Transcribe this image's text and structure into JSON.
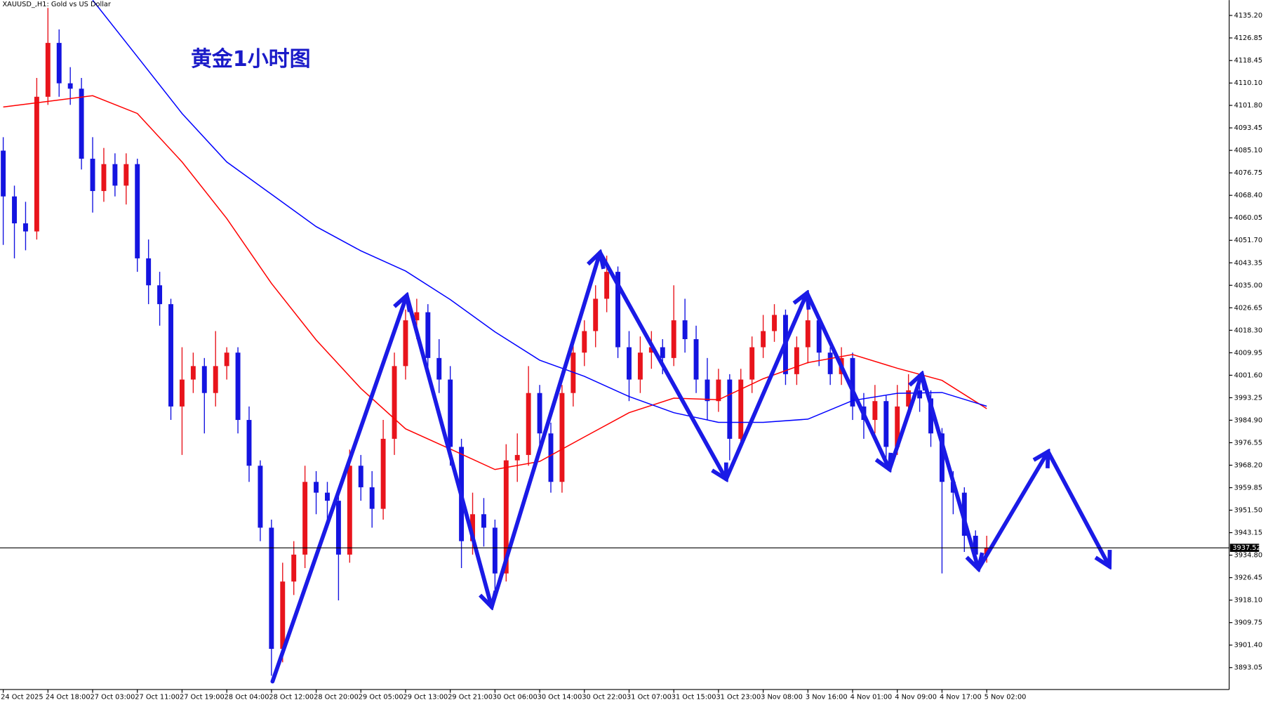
{
  "chart_data": {
    "type": "candlestick",
    "title": "XAUUSD_,H1:  Gold vs US Dollar",
    "annotation": "黄金1小时图",
    "categories": [
      "24 Oct 2025",
      null,
      null,
      null,
      "24 Oct 18:00",
      null,
      null,
      null,
      "27 Oct 03:00",
      null,
      null,
      null,
      "27 Oct 11:00",
      null,
      null,
      null,
      "27 Oct 19:00",
      null,
      null,
      null,
      "28 Oct 04:00",
      null,
      null,
      null,
      "28 Oct 12:00",
      null,
      null,
      null,
      "28 Oct 20:00",
      null,
      null,
      null,
      "29 Oct 05:00",
      null,
      null,
      null,
      "29 Oct 13:00",
      null,
      null,
      null,
      "29 Oct 21:00",
      null,
      null,
      null,
      "30 Oct 06:00",
      null,
      null,
      null,
      "30 Oct 14:00",
      null,
      null,
      null,
      "30 Oct 22:00",
      null,
      null,
      null,
      "31 Oct 07:00",
      null,
      null,
      null,
      "31 Oct 15:00",
      null,
      null,
      null,
      "31 Oct 23:00",
      null,
      null,
      null,
      "3 Nov 08:00",
      null,
      null,
      null,
      "3 Nov 16:00",
      null,
      null,
      null,
      "4 Nov 01:00",
      null,
      null,
      null,
      "4 Nov 09:00",
      null,
      null,
      null,
      "4 Nov 17:00",
      null,
      null,
      null,
      "5 Nov 02:00"
    ],
    "open": [
      4085,
      4068,
      4058,
      4055,
      4105,
      4125,
      4110,
      4108,
      4082,
      4070,
      4080,
      4072,
      4080,
      4045,
      4035,
      4028,
      3990,
      4000,
      4005,
      3995,
      4005,
      4010,
      3985,
      3968,
      3945,
      3900,
      3925,
      3935,
      3962,
      3958,
      3955,
      3935,
      3968,
      3960,
      3952,
      3978,
      4005,
      4022,
      4025,
      4008,
      4000,
      3975,
      3940,
      3950,
      3945,
      3928,
      3970,
      3972,
      3995,
      3980,
      3962,
      3995,
      4010,
      4018,
      4030,
      4040,
      4012,
      4000,
      4010,
      4012,
      4008,
      4022,
      4015,
      4000,
      3992,
      4000,
      3978,
      4000,
      4012,
      4018,
      4024,
      4002,
      4012,
      4022,
      4010,
      4002,
      4008,
      3990,
      3985,
      3992,
      3975,
      3990,
      3996,
      3993,
      3980,
      3962,
      3958,
      3942,
      3935
    ],
    "high": [
      4090,
      4072,
      4066,
      4112,
      4138,
      4130,
      4116,
      4112,
      4090,
      4086,
      4084,
      4084,
      4082,
      4052,
      4040,
      4030,
      4012,
      4010,
      4008,
      4018,
      4012,
      4012,
      3990,
      3970,
      3948,
      3932,
      3940,
      3968,
      3966,
      3962,
      3958,
      3974,
      3972,
      3966,
      3985,
      4010,
      4026,
      4030,
      4028,
      4015,
      4005,
      3978,
      3958,
      3956,
      3948,
      3976,
      3980,
      4005,
      3998,
      3984,
      3998,
      4014,
      4022,
      4035,
      4046,
      4042,
      4018,
      4016,
      4018,
      4015,
      4035,
      4030,
      4020,
      4008,
      4004,
      4002,
      4004,
      4016,
      4024,
      4028,
      4026,
      4016,
      4026,
      4024,
      4012,
      4012,
      4010,
      3995,
      3998,
      3994,
      3998,
      4002,
      4000,
      3996,
      3982,
      3966,
      3960,
      3944,
      3942
    ],
    "low": [
      4050,
      4045,
      4048,
      4052,
      4102,
      4105,
      4102,
      4078,
      4062,
      4066,
      4068,
      4065,
      4040,
      4028,
      4020,
      3985,
      3972,
      3995,
      3980,
      3990,
      4000,
      3980,
      3962,
      3940,
      3890,
      3895,
      3920,
      3930,
      3950,
      3948,
      3918,
      3932,
      3955,
      3945,
      3948,
      3972,
      4000,
      4015,
      4002,
      3995,
      3968,
      3930,
      3935,
      3938,
      3918,
      3925,
      3962,
      3968,
      3975,
      3958,
      3958,
      3990,
      4005,
      4012,
      4025,
      4008,
      3992,
      3995,
      4004,
      4002,
      4005,
      4010,
      3995,
      3985,
      3988,
      3970,
      3975,
      3995,
      4008,
      4014,
      3998,
      3998,
      4006,
      4005,
      3998,
      3998,
      3985,
      3978,
      3980,
      3970,
      3972,
      3986,
      3988,
      3975,
      3928,
      3950,
      3936,
      3930,
      3932
    ],
    "close": [
      4068,
      4058,
      4055,
      4105,
      4125,
      4110,
      4108,
      4082,
      4070,
      4080,
      4072,
      4080,
      4045,
      4035,
      4028,
      3990,
      4000,
      4005,
      3995,
      4005,
      4010,
      3985,
      3968,
      3945,
      3900,
      3925,
      3935,
      3962,
      3958,
      3955,
      3935,
      3968,
      3960,
      3952,
      3978,
      4005,
      4022,
      4025,
      4008,
      4000,
      3975,
      3940,
      3950,
      3945,
      3928,
      3970,
      3972,
      3995,
      3980,
      3962,
      3995,
      4010,
      4018,
      4030,
      4040,
      4012,
      4000,
      4010,
      4012,
      4008,
      4022,
      4015,
      4000,
      3992,
      4000,
      3978,
      4000,
      4012,
      4018,
      4024,
      4002,
      4012,
      4022,
      4010,
      4002,
      4008,
      3990,
      3985,
      3992,
      3975,
      3990,
      3996,
      3993,
      3980,
      3962,
      3958,
      3942,
      3935,
      3937.52
    ],
    "up_color": "#e8141c",
    "down_color": "#1414e0",
    "series": [
      {
        "color": "#ff0000",
        "x": [
          0,
          4,
          8,
          12,
          16,
          20,
          24,
          28,
          32,
          36,
          40,
          44,
          48,
          52,
          56,
          60,
          64,
          68,
          72,
          76,
          80,
          84,
          88
        ],
        "values": [
          4101.2,
          4103.3,
          4105.4,
          4098.8,
          4080.8,
          4059.8,
          4035.7,
          4014.7,
          3996.7,
          3981.7,
          3974.2,
          3966.6,
          3969.6,
          3978.7,
          3987.7,
          3993.1,
          3992.5,
          4000.3,
          4006.3,
          4009.3,
          4004.2,
          3999.7,
          3989.2
        ]
      },
      {
        "color": "#0000ff",
        "x": [
          0,
          4,
          8,
          12,
          16,
          20,
          24,
          28,
          32,
          36,
          40,
          44,
          48,
          52,
          56,
          60,
          64,
          68,
          72,
          76,
          80,
          84,
          88
        ],
        "values": [
          null,
          null,
          4140.9,
          4119.9,
          4098.8,
          4080.8,
          4068.8,
          4056.8,
          4047.8,
          4040.3,
          4029.7,
          4017.7,
          4007.2,
          4001.2,
          3993.7,
          3987.7,
          3984.1,
          3984.1,
          3985.3,
          3992.2,
          3994.9,
          3995.2,
          3990.1
        ]
      }
    ],
    "current_price": 3937.52,
    "ylim": [
      3884.9,
      4140.9
    ],
    "yticks": [
      {
        "value": 4135.2,
        "label": "4135.20"
      },
      {
        "value": 4126.85,
        "label": "4126.85"
      },
      {
        "value": 4118.45,
        "label": "4118.45"
      },
      {
        "value": 4110.1,
        "label": "4110.10"
      },
      {
        "value": 4101.8,
        "label": "4101.80"
      },
      {
        "value": 4093.45,
        "label": "4093.45"
      },
      {
        "value": 4085.1,
        "label": "4085.10"
      },
      {
        "value": 4076.75,
        "label": "4076.75"
      },
      {
        "value": 4068.4,
        "label": "4068.40"
      },
      {
        "value": 4060.05,
        "label": "4060.05"
      },
      {
        "value": 4051.7,
        "label": "4051.70"
      },
      {
        "value": 4043.35,
        "label": "4043.35"
      },
      {
        "value": 4035,
        "label": "4035.00"
      },
      {
        "value": 4026.65,
        "label": "4026.65"
      },
      {
        "value": 4018.3,
        "label": "4018.30"
      },
      {
        "value": 4009.95,
        "label": "4009.95"
      },
      {
        "value": 4001.6,
        "label": "4001.60"
      },
      {
        "value": 3993.25,
        "label": "3993.25"
      },
      {
        "value": 3984.9,
        "label": "3984.90"
      },
      {
        "value": 3976.55,
        "label": "3976.55"
      },
      {
        "value": 3968.2,
        "label": "3968.20"
      },
      {
        "value": 3959.85,
        "label": "3959.85"
      },
      {
        "value": 3951.5,
        "label": "3951.50"
      },
      {
        "value": 3943.15,
        "label": "3943.15"
      },
      {
        "value": 3934.8,
        "label": "3934.80"
      },
      {
        "value": 3926.45,
        "label": "3926.45"
      },
      {
        "value": 3918.1,
        "label": "3918.10"
      },
      {
        "value": 3909.75,
        "label": "3909.75"
      },
      {
        "value": 3901.4,
        "label": "3901.40"
      },
      {
        "value": 3893.05,
        "label": "3893.05"
      }
    ]
  }
}
